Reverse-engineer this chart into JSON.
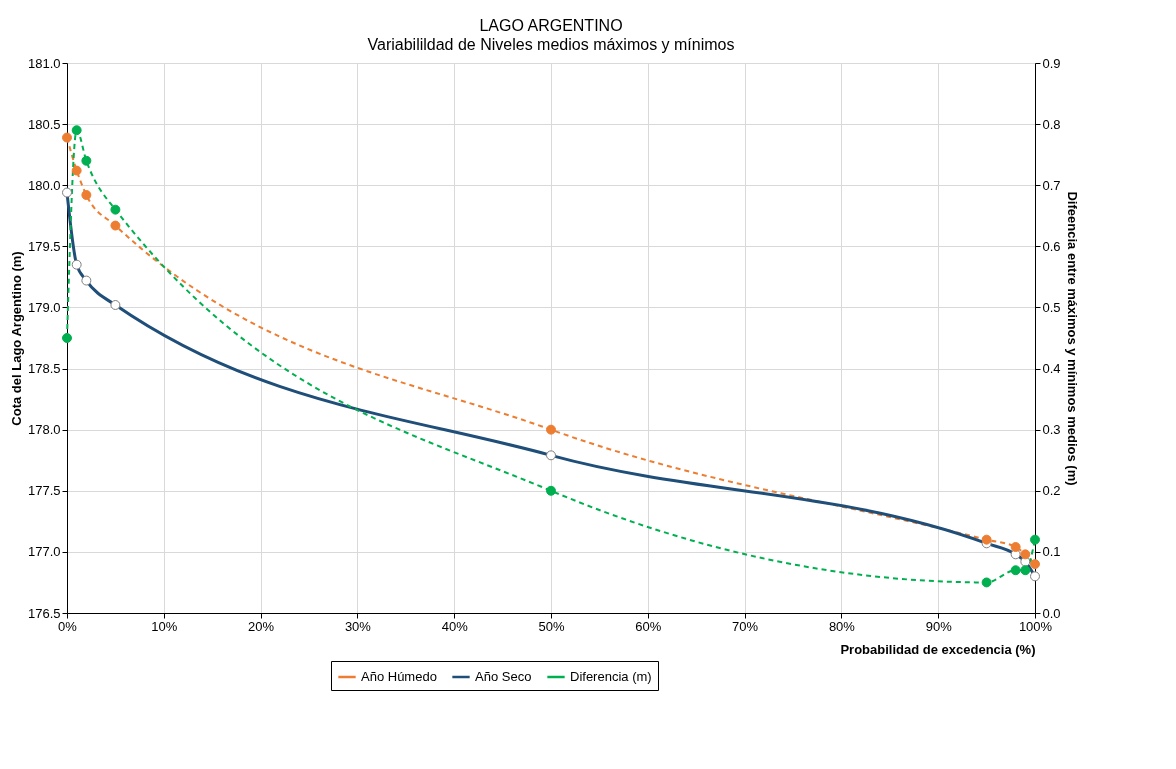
{
  "chart_data": {
    "type": "line",
    "title": "LAGO ARGENTINO",
    "subtitle": "Variabilildad de Niveles medios máximos y mínimos",
    "xlabel": "Probabilidad de excedencia (%)",
    "ylabel": "Cota del Lago Argentino (m)",
    "y2label": "Difeencia entre máximos y mínimos medios (m)",
    "x": [
      0,
      1,
      2,
      5,
      50,
      95,
      98,
      99,
      100
    ],
    "series": [
      {
        "name": "Año Húmedo",
        "color": "#ed7d31",
        "line_style": "dashed",
        "marker": "circle",
        "values": [
          180.39,
          180.12,
          179.92,
          179.67,
          178.0,
          177.1,
          177.04,
          176.98,
          176.9
        ]
      },
      {
        "name": "Año Seco",
        "color": "#1f4e79",
        "line_style": "solid",
        "marker": "circle",
        "values": [
          179.94,
          179.35,
          179.22,
          179.02,
          177.79,
          177.07,
          176.98,
          176.92,
          176.8
        ]
      },
      {
        "name": "Diferencia (m)",
        "color": "#00b050",
        "line_style": "dashed",
        "marker": "circle",
        "axis": "y2",
        "values": [
          0.45,
          0.79,
          0.74,
          0.66,
          0.2,
          0.05,
          0.07,
          0.07,
          0.12
        ]
      }
    ],
    "xlim": [
      0,
      100
    ],
    "xticks": [
      {
        "value": 0,
        "label": "0%"
      },
      {
        "value": 10,
        "label": "10%"
      },
      {
        "value": 20,
        "label": "20%"
      },
      {
        "value": 30,
        "label": "30%"
      },
      {
        "value": 40,
        "label": "40%"
      },
      {
        "value": 50,
        "label": "50%"
      },
      {
        "value": 60,
        "label": "60%"
      },
      {
        "value": 70,
        "label": "70%"
      },
      {
        "value": 80,
        "label": "80%"
      },
      {
        "value": 90,
        "label": "90%"
      },
      {
        "value": 100,
        "label": "100%"
      }
    ],
    "ylim": [
      176.5,
      181.0
    ],
    "yticks": [
      {
        "value": 176.5,
        "label": "176.5"
      },
      {
        "value": 177,
        "label": "177.0"
      },
      {
        "value": 177.5,
        "label": "177.5"
      },
      {
        "value": 178,
        "label": "178.0"
      },
      {
        "value": 178.5,
        "label": "178.5"
      },
      {
        "value": 179,
        "label": "179.0"
      },
      {
        "value": 179.5,
        "label": "179.5"
      },
      {
        "value": 180,
        "label": "180.0"
      },
      {
        "value": 180.5,
        "label": "180.5"
      },
      {
        "value": 181,
        "label": "181.0"
      }
    ],
    "y2lim": [
      0,
      0.9
    ],
    "y2ticks": [
      {
        "value": 0,
        "label": "0.0"
      },
      0.1,
      0.2,
      0.3,
      0.4,
      0.5,
      0.6,
      0.7,
      0.8,
      0.9
    ],
    "grid": true,
    "legend": "bottom"
  }
}
